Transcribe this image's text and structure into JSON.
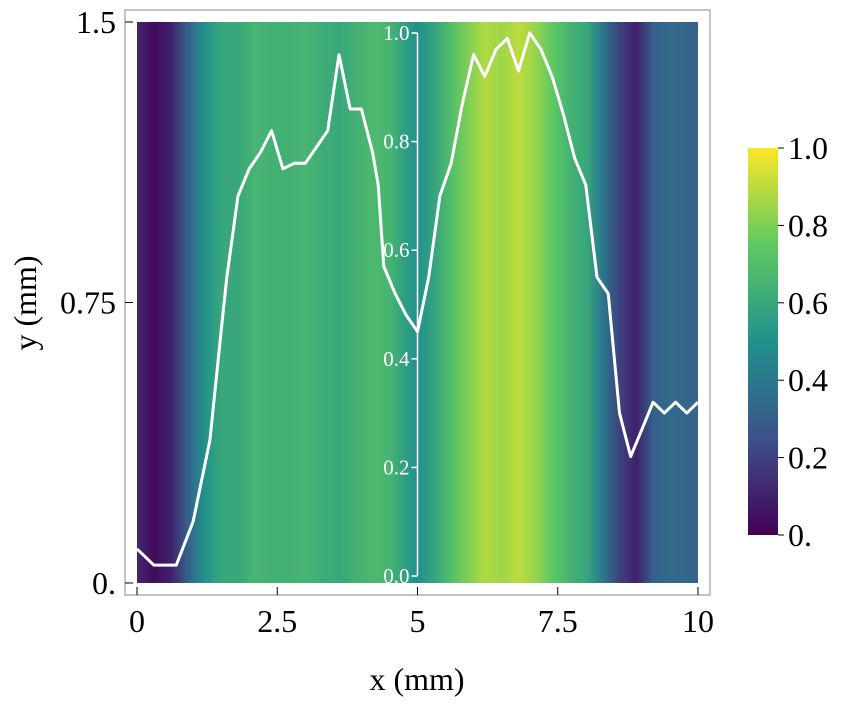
{
  "chart_data": {
    "type": "heatmap",
    "xlabel": "x (mm)",
    "ylabel": "y (mm)",
    "xlim": [
      0,
      10
    ],
    "ylim": [
      0,
      1.5
    ],
    "x_ticks": [
      {
        "value": 0,
        "label": "0"
      },
      {
        "value": 2.5,
        "label": "2.5"
      },
      {
        "value": 5,
        "label": "5"
      },
      {
        "value": 7.5,
        "label": "7.5"
      },
      {
        "value": 10,
        "label": "10"
      }
    ],
    "y_ticks": [
      {
        "value": 0,
        "label": "0."
      },
      {
        "value": 0.75,
        "label": "0.75"
      },
      {
        "value": 1.5,
        "label": "1.5"
      }
    ],
    "colormap": "viridis",
    "colormap_stops": [
      "#440154",
      "#3b528b",
      "#21918c",
      "#5ec962",
      "#fde725"
    ],
    "colorbar": {
      "range": [
        0,
        1
      ],
      "ticks": [
        {
          "value": 0,
          "label": "0."
        },
        {
          "value": 0.2,
          "label": "0.2"
        },
        {
          "value": 0.4,
          "label": "0.4"
        },
        {
          "value": 0.6,
          "label": "0.6"
        },
        {
          "value": 0.8,
          "label": "0.8"
        },
        {
          "value": 1.0,
          "label": "1.0"
        }
      ]
    },
    "column_profile": {
      "x": [
        0,
        0.3,
        0.6,
        0.9,
        1.2,
        1.5,
        1.8,
        2.1,
        2.4,
        2.7,
        3.0,
        3.3,
        3.6,
        3.9,
        4.2,
        4.5,
        4.8,
        5.0,
        5.3,
        5.6,
        5.9,
        6.2,
        6.5,
        6.8,
        7.1,
        7.4,
        7.7,
        8.0,
        8.3,
        8.6,
        8.9,
        9.2,
        9.5,
        9.8,
        10.0
      ],
      "values": [
        0.12,
        0.03,
        0.1,
        0.3,
        0.5,
        0.6,
        0.6,
        0.66,
        0.64,
        0.64,
        0.66,
        0.62,
        0.6,
        0.64,
        0.68,
        0.66,
        0.55,
        0.5,
        0.58,
        0.7,
        0.8,
        0.88,
        0.85,
        0.9,
        0.84,
        0.75,
        0.65,
        0.6,
        0.4,
        0.2,
        0.1,
        0.3,
        0.35,
        0.33,
        0.32
      ]
    },
    "inset_line": {
      "color": "#ffffff",
      "y_range": [
        0,
        1
      ],
      "y_ticks": [
        {
          "value": 0,
          "label": "0.0"
        },
        {
          "value": 0.2,
          "label": "0.2"
        },
        {
          "value": 0.4,
          "label": "0.4"
        },
        {
          "value": 0.6,
          "label": "0.6"
        },
        {
          "value": 0.8,
          "label": "0.8"
        },
        {
          "value": 1.0,
          "label": "1.0"
        }
      ],
      "x": [
        0.0,
        0.3,
        0.7,
        1.0,
        1.3,
        1.5,
        1.6,
        1.8,
        2.0,
        2.2,
        2.4,
        2.6,
        2.8,
        3.0,
        3.2,
        3.4,
        3.6,
        3.8,
        4.0,
        4.2,
        4.3,
        4.4,
        4.6,
        4.8,
        5.0,
        5.2,
        5.4,
        5.6,
        5.8,
        6.0,
        6.2,
        6.4,
        6.6,
        6.8,
        7.0,
        7.2,
        7.4,
        7.6,
        7.8,
        8.0,
        8.2,
        8.4,
        8.6,
        8.8,
        9.0,
        9.2,
        9.4,
        9.6,
        9.8,
        10.0
      ],
      "y": [
        0.05,
        0.02,
        0.02,
        0.1,
        0.25,
        0.45,
        0.55,
        0.7,
        0.75,
        0.78,
        0.82,
        0.75,
        0.76,
        0.76,
        0.79,
        0.82,
        0.96,
        0.86,
        0.86,
        0.78,
        0.72,
        0.57,
        0.52,
        0.48,
        0.45,
        0.55,
        0.7,
        0.76,
        0.87,
        0.96,
        0.92,
        0.97,
        0.99,
        0.93,
        1.0,
        0.97,
        0.92,
        0.85,
        0.77,
        0.72,
        0.55,
        0.52,
        0.3,
        0.22,
        0.27,
        0.32,
        0.3,
        0.32,
        0.3,
        0.32
      ]
    }
  }
}
